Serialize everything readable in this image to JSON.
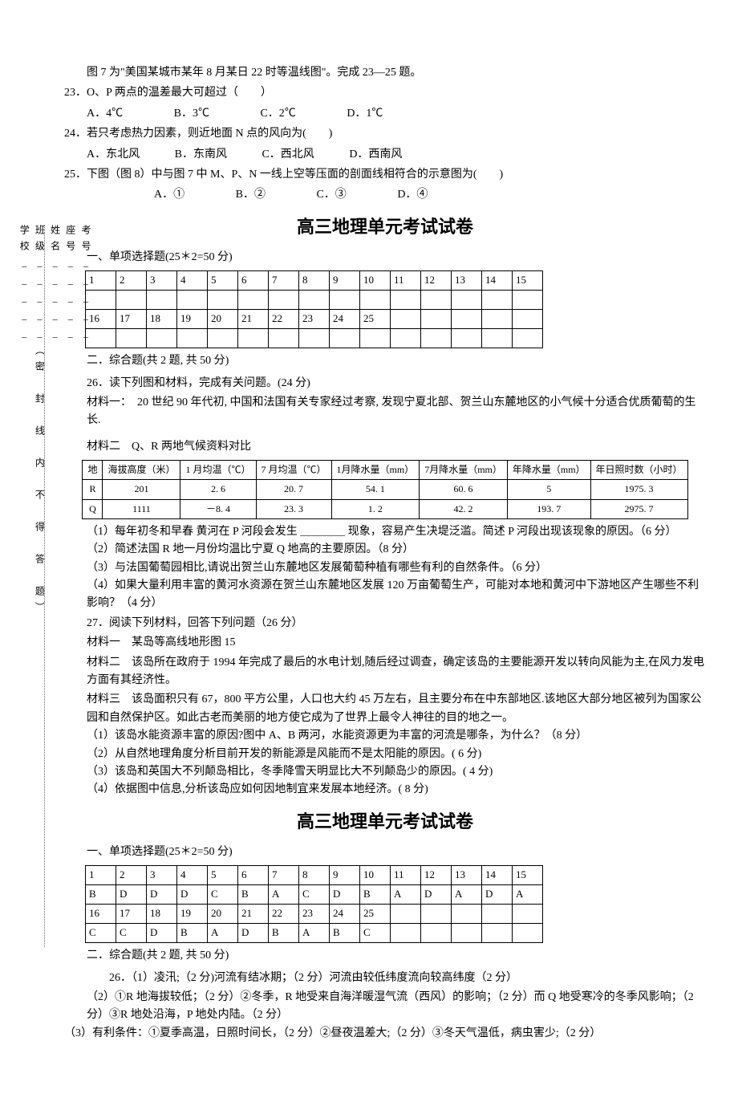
{
  "intro": "图 7 为\"美国某城市某年 8 月某日 22 时等温线图\"。完成 23—25 题。",
  "q23": {
    "stem": "23．O、P 两点的温差最大可超过（　　）",
    "opts": {
      "a": "A．4℃",
      "b": "B．3℃",
      "c": "C．2℃",
      "d": "D．1℃"
    }
  },
  "q24": {
    "stem": "24．若只考虑热力因素，则近地面 N 点的风向为(　　)",
    "opts": {
      "a": "A．东北风",
      "b": "B．东南风",
      "c": "C．西北风",
      "d": "D．西南风"
    }
  },
  "q25": {
    "stem": "25．下图（图 8）中与图 7 中 M、P、N 一线上空等压面的剖面线相符合的示意图为(　　)",
    "opts": {
      "a": "A．①",
      "b": "B．②",
      "c": "C．③",
      "d": "D．④"
    }
  },
  "title": "高三地理单元考试试卷",
  "section1": "一、单项选择题(25＊2=50 分)",
  "grid": {
    "nums1": [
      "1",
      "2",
      "3",
      "4",
      "5",
      "6",
      "7",
      "8",
      "9",
      "10",
      "11",
      "12",
      "13",
      "14",
      "15"
    ],
    "blanks1": [
      "",
      "",
      "",
      "",
      "",
      "",
      "",
      "",
      "",
      "",
      "",
      "",
      "",
      "",
      ""
    ],
    "nums2": [
      "16",
      "17",
      "18",
      "19",
      "20",
      "21",
      "22",
      "23",
      "24",
      "25",
      "",
      "",
      "",
      "",
      ""
    ],
    "blanks2": [
      "",
      "",
      "",
      "",
      "",
      "",
      "",
      "",
      "",
      "",
      "",
      "",
      "",
      "",
      ""
    ]
  },
  "section2": "二．综合题(共 2 题, 共 50 分)",
  "q26": {
    "stem": "26．读下列图和材料，完成有关问题。(24 分)",
    "m1": "材料一：　20 世纪 90 年代初, 中国和法国有关专家经过考察, 发现宁夏北部、贺兰山东麓地区的小气候十分适合优质葡萄的生长.",
    "m2": "材料二　Q、R 两地气候资料对比",
    "s1": "（1）每年初冬和早春 黄河在 P 河段会发生 ＿＿＿＿ 现象，容易产生决堤泛滥。简述 P 河段出现该现象的原因。（6 分）",
    "s2": "（2）简述法国 R 地一月份均温比宁夏 Q 地高的主要原因。（8 分）",
    "s3": "（3）与法国葡萄园相比,请说出贺兰山东麓地区发展葡萄种植有哪些有利的自然条件。（6 分）",
    "s4": "（4）如果大量利用丰富的黄河水资源在贺兰山东麓地区发展 120 万亩葡萄生产，可能对本地和黄河中下游地区产生哪些不利影响？（4 分）"
  },
  "climate": {
    "headers": [
      "地",
      "海拔高度（米）",
      "1 月均温（℃）",
      "7 月均温（℃）",
      "1月降水量（mm）",
      "7月降水量（mm）",
      "年降水量（mm）",
      "年日照时数（小时）"
    ],
    "rows": [
      [
        "R",
        "201",
        "2. 6",
        "20. 7",
        "54. 1",
        "60. 6",
        "5",
        "1975. 3"
      ],
      [
        "Q",
        "1111",
        "－8. 4",
        "23. 3",
        "1. 2",
        "42. 2",
        "193. 7",
        "2975. 7"
      ]
    ]
  },
  "q27": {
    "stem": "27．阅读下列材料，回答下列问题（26 分）",
    "m1": "材料一　某岛等高线地形图 15",
    "m2": "材料二　该岛所在政府于 1994 年完成了最后的水电计划,随后经过调查，确定该岛的主要能源开发以转向风能为主,在风力发电方面有其经济性。",
    "m3": "材料三　该岛面积只有 67，800 平方公里，人口也大约 45 万左右，且主要分布在中东部地区.该地区大部分地区被列为国家公园和自然保护区。如此古老而美丽的地方使它成为了世界上最令人神往的目的地之一。",
    "s1": "（1）该岛水能资源丰富的原因?图中 A、B 两河，水能资源更为丰富的河流是哪条，为什么？（8 分）",
    "s2": "（2）从自然地理角度分析目前开发的新能源是风能而不是太阳能的原因。( 6 分)",
    "s3": "（3）该岛和英国大不列颠岛相比，冬季降雪天明显比大不列颠岛少的原因。( 4 分)",
    "s4": "（4）依据图中信息,分析该岛应如何因地制宜来发展本地经济。( 8 分)"
  },
  "answers": {
    "row1": [
      "B",
      "D",
      "D",
      "D",
      "C",
      "B",
      "A",
      "C",
      "D",
      "B",
      "A",
      "D",
      "A",
      "D",
      "A"
    ],
    "row2": [
      "C",
      "C",
      "D",
      "B",
      "A",
      "D",
      "B",
      "A",
      "B",
      "C",
      "",
      "",
      "",
      "",
      ""
    ]
  },
  "a26": {
    "l1": "26．（1）凌汛;（2 分)河流有结冰期；（2 分）河流由较低纬度流向较高纬度（2 分）",
    "l2": "（2）①R 地海拔较低；（2 分）②冬季，R 地受来自海洋暖湿气流（西风）的影响；（2 分）而 Q 地受寒冷的冬季风影响；（2 分）③R 地处沿海，P 地处内陆。（2 分）",
    "l3": "（3）有利条件：①夏季高温，日照时间长，（2 分）②昼夜温差大;（2 分）③冬天气温低，病虫害少;（2 分）"
  },
  "vlabels": {
    "a": "考号_____",
    "b": "座号_____",
    "c": "姓名_____",
    "d": "班级_____（密　封　线　内　不　得　答　题）",
    "e": "学校_____"
  }
}
